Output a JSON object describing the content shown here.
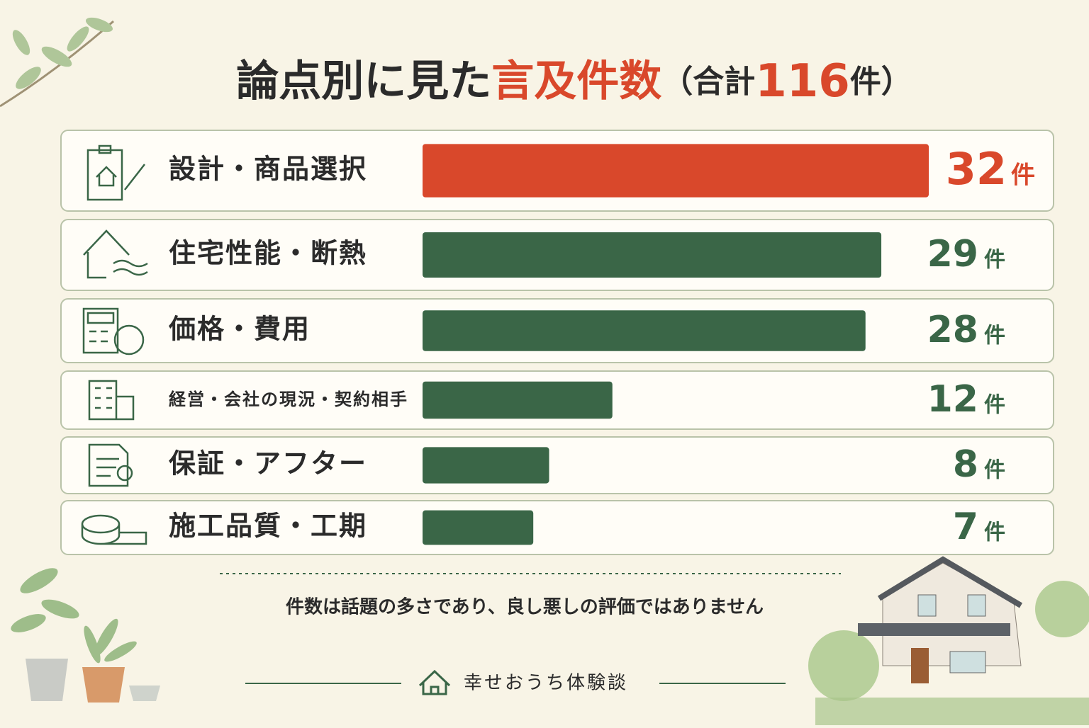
{
  "chart_data": {
    "type": "bar",
    "title_prefix": "論点別に見た",
    "title_highlight": "言及件数",
    "total_prefix": "（合計",
    "total": 116,
    "total_suffix": "件）",
    "categories": [
      "設計・商品選択",
      "住宅性能・断熱",
      "価格・費用",
      "経営・会社の現況・契約相手",
      "保証・アフター",
      "施工品質・工期"
    ],
    "values": [
      32,
      29,
      28,
      12,
      8,
      7
    ],
    "unit": "件",
    "colors": [
      "#d9482b",
      "#3a6647",
      "#3a6647",
      "#3a6647",
      "#3a6647",
      "#3a6647"
    ],
    "xlim": [
      0,
      32
    ],
    "note": "件数は話題の多さであり、良し悪しの評価ではありません",
    "brand": "幸せおうち体験談"
  }
}
